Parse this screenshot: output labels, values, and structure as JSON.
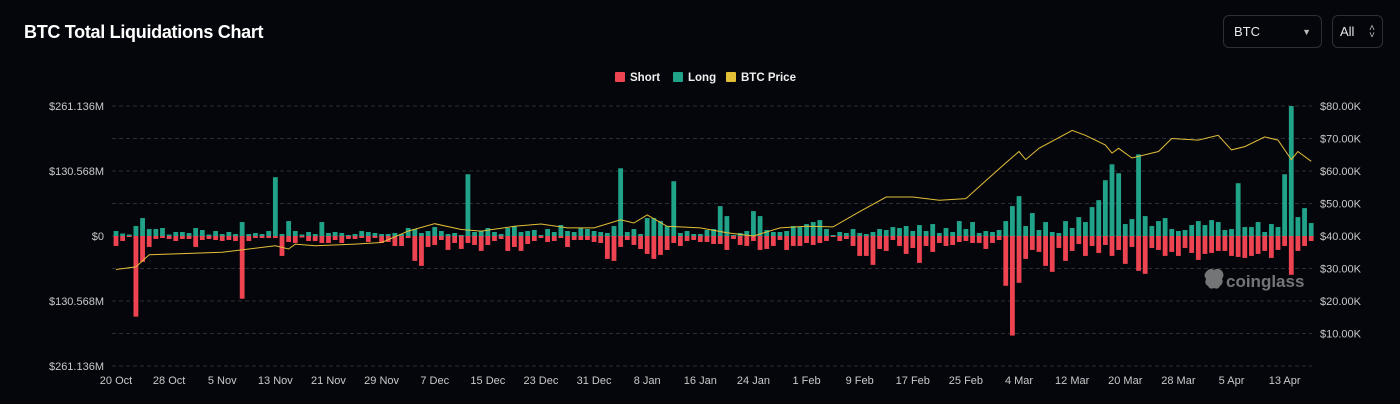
{
  "header": {
    "title": "BTC Total Liquidations Chart"
  },
  "controls": {
    "coin_select": "BTC",
    "range_select": "All"
  },
  "watermark": "coinglass",
  "colors": {
    "short": "#ee4351",
    "long": "#21a38a",
    "price": "#e3bf38",
    "background": "#05060b"
  },
  "chart_data": {
    "type": "bar",
    "title": "BTC Total Liquidations Chart",
    "legend": {
      "position": "top-center",
      "items": [
        "Short",
        "Long",
        "BTC Price"
      ]
    },
    "grid": true,
    "x_tick_labels": [
      "20 Oct",
      "28 Oct",
      "5 Nov",
      "13 Nov",
      "21 Nov",
      "29 Nov",
      "7 Dec",
      "15 Dec",
      "23 Dec",
      "31 Dec",
      "8 Jan",
      "16 Jan",
      "24 Jan",
      "1 Feb",
      "9 Feb",
      "17 Feb",
      "25 Feb",
      "4 Mar",
      "12 Mar",
      "20 Mar",
      "28 Mar",
      "5 Apr",
      "13 Apr"
    ],
    "x_tick_every_days": 8,
    "left_axis": {
      "unit": "USD millions",
      "ylim": [
        -261.136,
        261.136
      ],
      "tick_labels": [
        "$261.136M",
        "$130.568M",
        "$0",
        "$130.568M",
        "$261.136M"
      ]
    },
    "right_axis": {
      "unit": "USD thousands",
      "ylim": [
        0,
        80
      ],
      "tick_labels": [
        "$80.00K",
        "$70.00K",
        "$60.00K",
        "$50.00K",
        "$40.00K",
        "$30.00K",
        "$20.00K",
        "$10.00K"
      ]
    },
    "series": [
      {
        "name": "Long",
        "type": "bar",
        "values": [
          10,
          5,
          3,
          20,
          36,
          14,
          14,
          16,
          3,
          8,
          8,
          6,
          16,
          12,
          3,
          10,
          4,
          8,
          4,
          28,
          4,
          6,
          4,
          10,
          118,
          4,
          30,
          10,
          3,
          8,
          4,
          28,
          6,
          8,
          6,
          2,
          4,
          10,
          8,
          6,
          4,
          4,
          6,
          4,
          16,
          14,
          6,
          10,
          18,
          10,
          4,
          6,
          2,
          124,
          8,
          10,
          16,
          8,
          4,
          16,
          20,
          8,
          10,
          12,
          2,
          14,
          8,
          22,
          10,
          8,
          16,
          14,
          10,
          8,
          6,
          20,
          136,
          8,
          14,
          4,
          36,
          36,
          30,
          20,
          110,
          6,
          10,
          4,
          4,
          12,
          14,
          60,
          40,
          2,
          6,
          10,
          50,
          40,
          12,
          8,
          8,
          10,
          20,
          18,
          24,
          28,
          32,
          14,
          2,
          8,
          6,
          14,
          6,
          4,
          8,
          14,
          12,
          18,
          16,
          20,
          10,
          22,
          10,
          24,
          6,
          16,
          8,
          30,
          14,
          28,
          6,
          10,
          8,
          12,
          30,
          60,
          80,
          20,
          46,
          12,
          28,
          8,
          6,
          30,
          16,
          38,
          28,
          58,
          72,
          112,
          144,
          126,
          24,
          34,
          164,
          40,
          20,
          30,
          36,
          14,
          10,
          12,
          22,
          30,
          22,
          32,
          28,
          12,
          14,
          106,
          18,
          18,
          28,
          8,
          24,
          18,
          124,
          261,
          38,
          56,
          26
        ]
      },
      {
        "name": "Short",
        "type": "bar",
        "values": [
          20,
          10,
          2,
          162,
          52,
          22,
          6,
          4,
          6,
          10,
          6,
          6,
          22,
          8,
          6,
          8,
          10,
          8,
          10,
          126,
          10,
          4,
          4,
          4,
          4,
          40,
          12,
          14,
          3,
          10,
          10,
          14,
          14,
          8,
          14,
          6,
          6,
          4,
          12,
          4,
          14,
          12,
          20,
          20,
          4,
          50,
          60,
          22,
          18,
          8,
          28,
          14,
          26,
          14,
          18,
          30,
          18,
          10,
          6,
          30,
          22,
          30,
          16,
          10,
          4,
          12,
          10,
          4,
          22,
          8,
          8,
          8,
          12,
          14,
          46,
          50,
          22,
          8,
          18,
          26,
          36,
          46,
          38,
          28,
          14,
          20,
          10,
          8,
          12,
          12,
          16,
          16,
          28,
          6,
          18,
          20,
          10,
          28,
          26,
          20,
          8,
          28,
          20,
          20,
          14,
          18,
          14,
          10,
          2,
          10,
          6,
          20,
          40,
          40,
          58,
          26,
          30,
          8,
          20,
          36,
          24,
          54,
          20,
          32,
          14,
          20,
          18,
          12,
          10,
          14,
          14,
          26,
          14,
          8,
          100,
          200,
          94,
          46,
          28,
          32,
          60,
          72,
          24,
          50,
          30,
          16,
          40,
          20,
          34,
          18,
          40,
          28,
          56,
          22,
          70,
          76,
          24,
          28,
          40,
          32,
          40,
          24,
          34,
          48,
          36,
          34,
          30,
          30,
          40,
          42,
          44,
          40,
          36,
          30,
          44,
          28,
          20,
          78,
          30,
          20,
          10
        ]
      },
      {
        "name": "BTC Price",
        "type": "line",
        "keypoints_day_price_k": [
          [
            0,
            29.7
          ],
          [
            3,
            30.5
          ],
          [
            5,
            34.2
          ],
          [
            16,
            35
          ],
          [
            22,
            36.5
          ],
          [
            24,
            37
          ],
          [
            26,
            36
          ],
          [
            27,
            37.5
          ],
          [
            30,
            37
          ],
          [
            36,
            37.5
          ],
          [
            40,
            38
          ],
          [
            44,
            41.5
          ],
          [
            48,
            43.8
          ],
          [
            52,
            42
          ],
          [
            55,
            41.5
          ],
          [
            60,
            43
          ],
          [
            64,
            43.7
          ],
          [
            68,
            42.5
          ],
          [
            72,
            42.5
          ],
          [
            76,
            45
          ],
          [
            78,
            44
          ],
          [
            80,
            46.5
          ],
          [
            83,
            43
          ],
          [
            88,
            42.5
          ],
          [
            92,
            41
          ],
          [
            96,
            40
          ],
          [
            100,
            42.5
          ],
          [
            104,
            43
          ],
          [
            108,
            42.8
          ],
          [
            112,
            47.5
          ],
          [
            116,
            52
          ],
          [
            120,
            52
          ],
          [
            124,
            51
          ],
          [
            128,
            51.5
          ],
          [
            131,
            57
          ],
          [
            134,
            62.5
          ],
          [
            136,
            66
          ],
          [
            137,
            63.5
          ],
          [
            139,
            67
          ],
          [
            144,
            72.5
          ],
          [
            146,
            71
          ],
          [
            149,
            68
          ],
          [
            150,
            65.5
          ],
          [
            151,
            67
          ],
          [
            153,
            64
          ],
          [
            157,
            66
          ],
          [
            159,
            70
          ],
          [
            163,
            69.5
          ],
          [
            166,
            71
          ],
          [
            168,
            66.5
          ],
          [
            170,
            67.5
          ],
          [
            173,
            70.5
          ],
          [
            175,
            69.5
          ],
          [
            177,
            63.5
          ],
          [
            178,
            66
          ],
          [
            180,
            63
          ]
        ]
      }
    ]
  }
}
